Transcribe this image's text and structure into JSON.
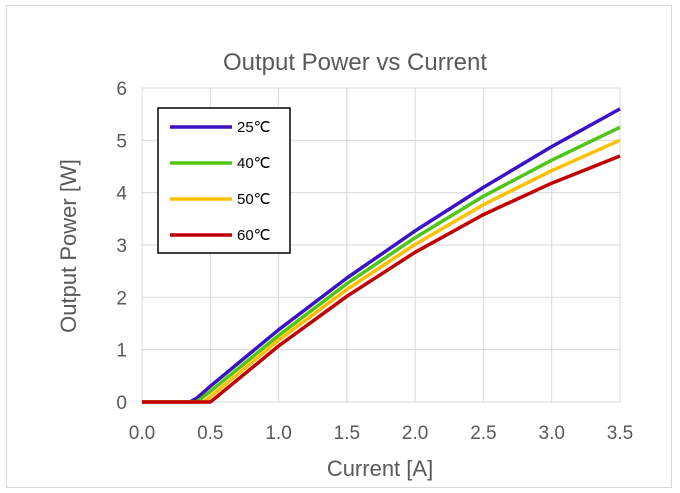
{
  "chart_data": {
    "type": "line",
    "title": "Output Power vs Current",
    "xlabel": "Current [A]",
    "ylabel": "Output Power [W]",
    "xlim": [
      0.0,
      3.5
    ],
    "ylim": [
      0,
      6
    ],
    "x_ticks": [
      "0.0",
      "0.5",
      "1.0",
      "1.5",
      "2.0",
      "2.5",
      "3.0",
      "3.5"
    ],
    "y_ticks": [
      "0",
      "1",
      "2",
      "3",
      "4",
      "5",
      "6"
    ],
    "grid": true,
    "legend_position": "top-left",
    "series": [
      {
        "name": "25℃",
        "color": "#3b11c4",
        "points": [
          [
            0.0,
            0
          ],
          [
            0.35,
            0
          ],
          [
            0.4,
            0.07
          ],
          [
            0.5,
            0.3
          ],
          [
            1.0,
            1.38
          ],
          [
            1.5,
            2.37
          ],
          [
            2.0,
            3.27
          ],
          [
            2.5,
            4.1
          ],
          [
            3.0,
            4.88
          ],
          [
            3.5,
            5.6
          ]
        ]
      },
      {
        "name": "40℃",
        "color": "#4fc615",
        "points": [
          [
            0.0,
            0
          ],
          [
            0.4,
            0
          ],
          [
            0.5,
            0.2
          ],
          [
            1.0,
            1.27
          ],
          [
            1.5,
            2.26
          ],
          [
            2.0,
            3.14
          ],
          [
            2.5,
            3.93
          ],
          [
            3.0,
            4.62
          ],
          [
            3.5,
            5.25
          ]
        ]
      },
      {
        "name": "50℃",
        "color": "#ffc000",
        "points": [
          [
            0.0,
            0
          ],
          [
            0.45,
            0
          ],
          [
            0.5,
            0.1
          ],
          [
            1.0,
            1.18
          ],
          [
            1.5,
            2.15
          ],
          [
            2.0,
            3.01
          ],
          [
            2.5,
            3.77
          ],
          [
            3.0,
            4.42
          ],
          [
            3.5,
            5.0
          ]
        ]
      },
      {
        "name": "60℃",
        "color": "#c00000",
        "points": [
          [
            0.0,
            0
          ],
          [
            0.5,
            0
          ],
          [
            0.52,
            0.04
          ],
          [
            1.0,
            1.07
          ],
          [
            1.5,
            2.02
          ],
          [
            2.0,
            2.86
          ],
          [
            2.5,
            3.58
          ],
          [
            3.0,
            4.18
          ],
          [
            3.5,
            4.7
          ]
        ]
      }
    ]
  }
}
